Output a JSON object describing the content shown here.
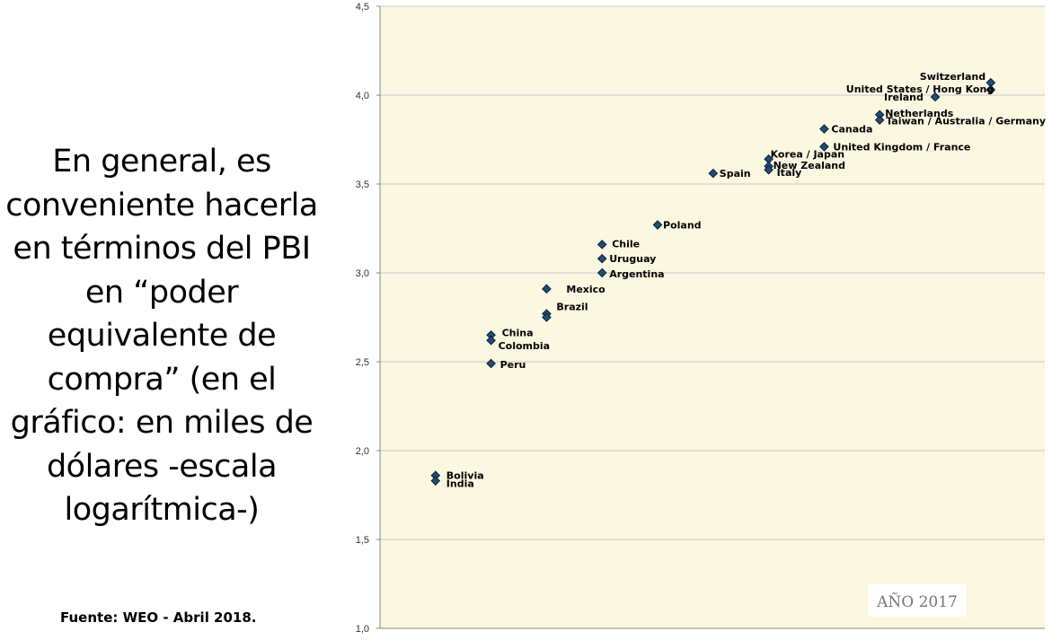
{
  "side_text": "En general, es conveniente hacerla en términos del PBI en “poder equivalente de compra” (en el gráfico: en miles de dólares -escala logarítmica-)",
  "source_text": "Fuente: WEO - Abril 2018.",
  "year_label": "AÑO 2017",
  "colors": {
    "plot_bg": "#fbf7e0",
    "marker": "#1f4e79",
    "gridline": "#c8c8c8"
  },
  "chart_data": {
    "type": "scatter",
    "ylim": [
      1.0,
      4.5
    ],
    "yticks": [
      1.0,
      1.5,
      2.0,
      2.5,
      3.0,
      3.5,
      4.0,
      4.5
    ],
    "ytick_labels": [
      "1,0",
      "1,5",
      "2,0",
      "2,5",
      "3,0",
      "3,5",
      "4,0",
      "4,5"
    ],
    "xlim": [
      0,
      12
    ],
    "grid": true,
    "marker": "diamond",
    "points": [
      {
        "label": "Bolivia",
        "x": 1,
        "y": 1.86
      },
      {
        "label": "India",
        "x": 1,
        "y": 1.83
      },
      {
        "label": "China",
        "x": 2,
        "y": 2.65
      },
      {
        "label": "Colombia",
        "x": 2,
        "y": 2.62
      },
      {
        "label": "Peru",
        "x": 2,
        "y": 2.49
      },
      {
        "label": "Mexico",
        "x": 3,
        "y": 2.91
      },
      {
        "label": "Brazil",
        "x": 3,
        "y": 2.77
      },
      {
        "label": "",
        "x": 3,
        "y": 2.75
      },
      {
        "label": "Chile",
        "x": 4,
        "y": 3.16
      },
      {
        "label": "Uruguay",
        "x": 4,
        "y": 3.08
      },
      {
        "label": "Argentina",
        "x": 4,
        "y": 3.0
      },
      {
        "label": "Poland",
        "x": 5,
        "y": 3.27
      },
      {
        "label": "Spain",
        "x": 6,
        "y": 3.56
      },
      {
        "label": "Korea / Japan",
        "x": 7,
        "y": 3.64
      },
      {
        "label": "New Zealand",
        "x": 7,
        "y": 3.6
      },
      {
        "label": "Italy",
        "x": 7,
        "y": 3.58
      },
      {
        "label": "Canada",
        "x": 8,
        "y": 3.81
      },
      {
        "label": "United Kingdom / France",
        "x": 8,
        "y": 3.71
      },
      {
        "label": "Netherlands",
        "x": 9,
        "y": 3.89
      },
      {
        "label": "Taiwan / Australia / Germany",
        "x": 9,
        "y": 3.86
      },
      {
        "label": "Ireland",
        "x": 10,
        "y": 3.99
      },
      {
        "label": "Switzerland",
        "x": 11,
        "y": 4.07
      },
      {
        "label": "United States / Hong Kong",
        "x": 11,
        "y": 4.03
      }
    ]
  }
}
